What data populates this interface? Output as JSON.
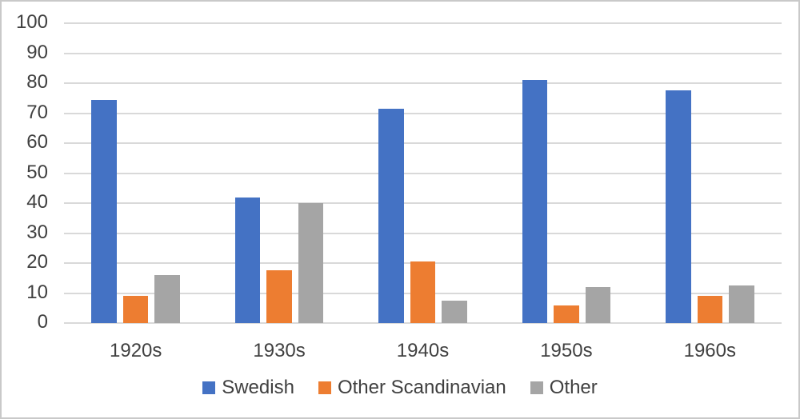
{
  "chart_data": {
    "type": "bar",
    "title": "",
    "categories": [
      "1920s",
      "1930s",
      "1940s",
      "1950s",
      "1960s"
    ],
    "series": [
      {
        "name": "Swedish",
        "color": "#4472C4",
        "values": [
          74.5,
          42,
          71.5,
          81,
          77.5
        ]
      },
      {
        "name": "Other Scandinavian",
        "color": "#ED7D31",
        "values": [
          9,
          17.5,
          20.5,
          6,
          9
        ]
      },
      {
        "name": "Other",
        "color": "#A5A5A5",
        "values": [
          16,
          40,
          7.5,
          12,
          12.5
        ]
      }
    ],
    "y_axis": {
      "min": 0,
      "max": 100,
      "step": 10,
      "tick_labels": [
        "0",
        "10",
        "20",
        "30",
        "40",
        "50",
        "60",
        "70",
        "80",
        "90",
        "100"
      ]
    },
    "grid": true,
    "legend_position": "bottom"
  },
  "colors": {
    "gridline": "#D9D9D9",
    "axis_text": "#404040",
    "background": "#FFFFFF",
    "frame_border": "#C9C9C9"
  }
}
